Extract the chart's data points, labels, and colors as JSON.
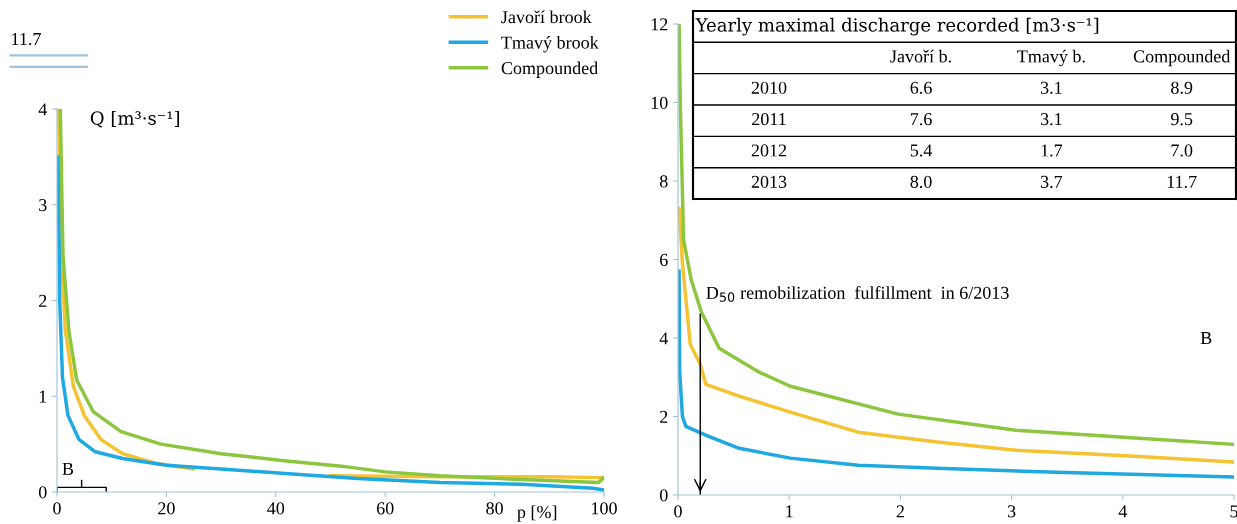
{
  "chart_data": [
    {
      "type": "line",
      "ylabel": "Q [m³·s⁻¹]",
      "xlabel": "p [%]",
      "xlim": [
        0,
        100
      ],
      "ylim": [
        0,
        4
      ],
      "xticks": [
        0,
        20,
        40,
        60,
        80,
        100
      ],
      "yticks": [
        0,
        1,
        2,
        3,
        4
      ],
      "legend": "top right",
      "annotations": [
        "11.7",
        "B"
      ],
      "series": [
        {
          "name": "Javoří brook",
          "color": "#f5c231",
          "x": [
            0.3,
            0.8,
            1.5,
            3,
            5,
            8,
            12,
            18,
            25,
            40,
            50,
            70,
            90,
            100
          ],
          "values": [
            4,
            2.5,
            1.7,
            1.1,
            0.8,
            0.55,
            0.4,
            0.3,
            0.24,
            null,
            0.17,
            0.16,
            0.16,
            0.15
          ]
        },
        {
          "name": "Tmavý brook",
          "color": "#1fa9e1",
          "x": [
            0.2,
            0.5,
            1,
            2,
            4,
            7,
            12,
            20,
            30,
            45,
            55,
            70,
            85,
            98,
            100
          ],
          "values": [
            3.5,
            2,
            1.2,
            0.8,
            0.55,
            0.42,
            0.35,
            0.28,
            0.24,
            0.18,
            0.14,
            0.1,
            0.08,
            0.04,
            0.02
          ]
        },
        {
          "name": "Compounded",
          "color": "#8cc63e",
          "x": [
            0.6,
            1.1,
            2.2,
            3.6,
            6.6,
            11.7,
            19,
            30,
            41,
            52,
            60,
            70,
            85,
            99,
            100
          ],
          "values": [
            4,
            2.46,
            1.67,
            1.17,
            0.84,
            0.63,
            0.5,
            0.4,
            0.33,
            0.27,
            0.21,
            0.17,
            0.13,
            0.1,
            0.15
          ]
        }
      ]
    },
    {
      "type": "line",
      "xlim": [
        0,
        5
      ],
      "ylim": [
        0,
        12
      ],
      "xticks": [
        0,
        1,
        2,
        3,
        4,
        5
      ],
      "yticks": [
        0,
        2,
        4,
        6,
        8,
        10,
        12
      ],
      "ref_lines": [
        {
          "axis": "x",
          "value": 0.2,
          "label": "D$_{50}$ remobilization  fulfillment  in 6/2013"
        }
      ],
      "annotations": [
        "B",
        "Yearly maximal discharge recorded [m3·s⁻¹]",
        "Javoří b.",
        "Tmavý b.",
        "Compounded",
        "2010",
        "6.6",
        "3.1",
        "8.9",
        "2011",
        "7.6",
        "3.1",
        "9.5",
        "2012",
        "5.4",
        "1.7",
        "7.0",
        "2013",
        "8.0",
        "3.7",
        "11.7"
      ],
      "series": [
        {
          "color": "#f5c231",
          "x": [
            0.01,
            0.04,
            0.11,
            0.2,
            0.25,
            0.55,
            1.01,
            1.62,
            2.33,
            3.04,
            4.11,
            5
          ],
          "values": [
            7.3,
            5.9,
            3.84,
            3.33,
            2.82,
            2.52,
            2.11,
            1.6,
            1.35,
            1.14,
            0.99,
            0.84
          ]
        },
        {
          "color": "#1fa9e1",
          "x": [
            0.01,
            0.015,
            0.04,
            0.07,
            0.27,
            0.55,
            1.01,
            1.62,
            2.33,
            3.4,
            5
          ],
          "values": [
            5.7,
            3.13,
            2.0,
            1.75,
            1.5,
            1.19,
            0.94,
            0.76,
            0.68,
            0.58,
            0.46
          ]
        },
        {
          "color": "#8cc63e",
          "x": [
            0.01,
            0.02,
            0.05,
            0.12,
            0.21,
            0.37,
            0.73,
            1.01,
            1.98,
            3.04,
            4.11,
            5
          ],
          "values": [
            12,
            10.06,
            6.5,
            5.47,
            4.66,
            3.74,
            3.13,
            2.77,
            2.06,
            1.65,
            1.45,
            1.29
          ]
        }
      ]
    }
  ]
}
